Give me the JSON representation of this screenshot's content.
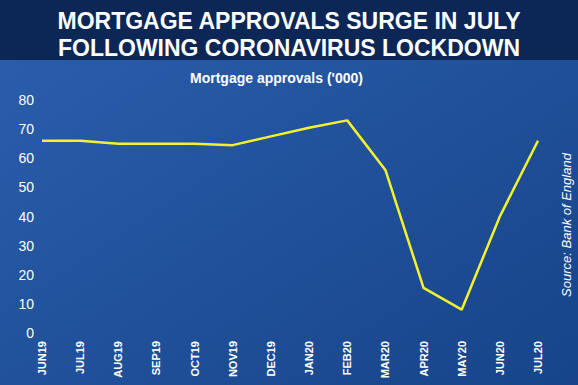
{
  "chart_data": {
    "type": "line",
    "title": "MORTGAGE APPROVALS SURGE IN JULY\nFOLLOWING CORONAVIRUS LOCKDOWN",
    "subtitle": "Mortgage approvals ('000)",
    "source": "Source: Bank of England",
    "categories": [
      "JUN19",
      "JUL19",
      "AUG19",
      "SEP19",
      "OCT19",
      "NOV19",
      "DEC19",
      "JAN20",
      "FEB20",
      "MAR20",
      "APR20",
      "MAY20",
      "JUN20",
      "JUL20"
    ],
    "values": [
      66,
      66,
      65,
      65,
      65,
      64.5,
      67.5,
      70.5,
      73,
      56,
      15.5,
      8,
      40,
      66
    ],
    "color": "#f4f22c",
    "ylim": [
      0,
      80
    ],
    "yticks": [
      0,
      10,
      20,
      30,
      40,
      50,
      60,
      70,
      80
    ],
    "grid": false
  }
}
